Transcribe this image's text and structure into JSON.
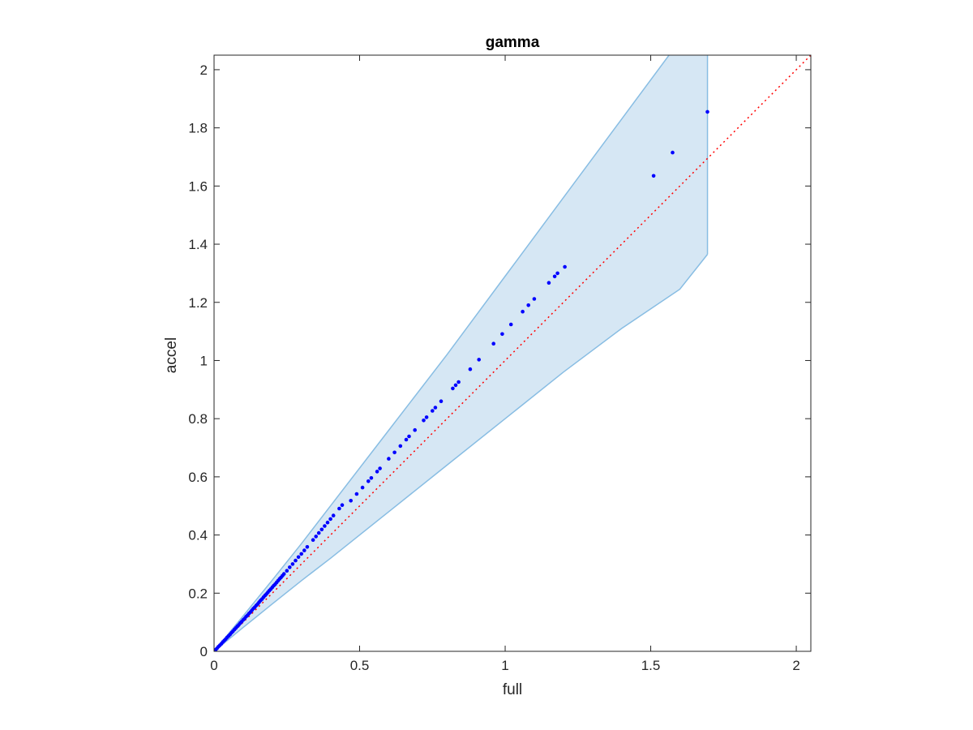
{
  "chart_data": {
    "type": "scatter",
    "title": "gamma",
    "xlabel": "full",
    "ylabel": "accel",
    "xlim": [
      0,
      2.05
    ],
    "ylim": [
      0,
      2.05
    ],
    "xticks": [
      0,
      0.5,
      1,
      1.5,
      2
    ],
    "xtick_labels": [
      "0",
      "0.5",
      "1",
      "1.5",
      "2"
    ],
    "yticks": [
      0,
      0.2,
      0.4,
      0.6,
      0.8,
      1,
      1.2,
      1.4,
      1.6,
      1.8,
      2
    ],
    "ytick_labels": [
      "0",
      "0.2",
      "0.4",
      "0.6",
      "0.8",
      "1",
      "1.2",
      "1.4",
      "1.6",
      "1.8",
      "2"
    ],
    "grid": false,
    "colors": {
      "points": "#0000ff",
      "reference_line": "#ff0000",
      "band_fill": "#d6e7f4",
      "band_edge": "#88bde3",
      "axes": "#262626"
    },
    "reference_line": {
      "style": "dotted",
      "x": [
        0,
        2.05
      ],
      "y": [
        0,
        2.05
      ]
    },
    "band": {
      "x": [
        0,
        0.1,
        0.2,
        0.3,
        0.4,
        0.6,
        0.8,
        1.0,
        1.2,
        1.4,
        1.6,
        1.695
      ],
      "upper": [
        0,
        0.122,
        0.245,
        0.37,
        0.5,
        0.76,
        1.02,
        1.29,
        1.56,
        1.83,
        2.1,
        2.225
      ],
      "lower": [
        0,
        0.082,
        0.163,
        0.243,
        0.32,
        0.48,
        0.64,
        0.8,
        0.96,
        1.11,
        1.245,
        1.365
      ]
    },
    "series": [
      {
        "x": [
          0.005,
          0.01,
          0.015,
          0.02,
          0.025,
          0.03,
          0.035,
          0.04,
          0.045,
          0.05,
          0.055,
          0.06,
          0.065,
          0.07,
          0.075,
          0.08,
          0.085,
          0.09,
          0.095,
          0.1,
          0.105,
          0.11,
          0.115,
          0.12,
          0.125,
          0.13,
          0.135,
          0.14,
          0.145,
          0.15,
          0.155,
          0.16,
          0.165,
          0.17,
          0.175,
          0.18,
          0.185,
          0.19,
          0.195,
          0.2,
          0.205,
          0.21,
          0.215,
          0.22,
          0.225,
          0.23,
          0.235,
          0.24,
          0.25,
          0.26,
          0.27,
          0.28,
          0.29,
          0.3,
          0.31,
          0.32,
          0.34,
          0.35,
          0.36,
          0.37,
          0.38,
          0.39,
          0.4,
          0.41,
          0.43,
          0.44,
          0.47,
          0.49,
          0.51,
          0.53,
          0.54,
          0.56,
          0.57,
          0.6,
          0.62,
          0.64,
          0.66,
          0.67,
          0.69,
          0.72,
          0.73,
          0.75,
          0.76,
          0.78,
          0.82,
          0.83,
          0.84,
          0.88,
          0.91,
          0.96,
          0.99,
          1.02,
          1.06,
          1.08,
          1.1,
          1.15,
          1.17,
          1.18,
          1.205,
          1.51,
          1.575,
          1.695
        ],
        "y": [
          0.005,
          0.01,
          0.016,
          0.021,
          0.026,
          0.032,
          0.037,
          0.042,
          0.048,
          0.053,
          0.058,
          0.064,
          0.069,
          0.075,
          0.08,
          0.086,
          0.091,
          0.097,
          0.102,
          0.108,
          0.113,
          0.119,
          0.124,
          0.13,
          0.135,
          0.141,
          0.147,
          0.152,
          0.158,
          0.163,
          0.169,
          0.175,
          0.18,
          0.186,
          0.192,
          0.197,
          0.203,
          0.209,
          0.214,
          0.22,
          0.226,
          0.231,
          0.237,
          0.243,
          0.249,
          0.254,
          0.26,
          0.266,
          0.277,
          0.289,
          0.3,
          0.312,
          0.324,
          0.335,
          0.347,
          0.359,
          0.383,
          0.395,
          0.407,
          0.419,
          0.431,
          0.443,
          0.455,
          0.467,
          0.491,
          0.503,
          0.518,
          0.541,
          0.563,
          0.585,
          0.596,
          0.618,
          0.629,
          0.662,
          0.684,
          0.706,
          0.728,
          0.739,
          0.761,
          0.794,
          0.805,
          0.827,
          0.838,
          0.86,
          0.904,
          0.915,
          0.926,
          0.97,
          1.003,
          1.058,
          1.091,
          1.124,
          1.168,
          1.19,
          1.212,
          1.267,
          1.289,
          1.3,
          1.322,
          1.635,
          1.715,
          1.855
        ]
      }
    ]
  }
}
